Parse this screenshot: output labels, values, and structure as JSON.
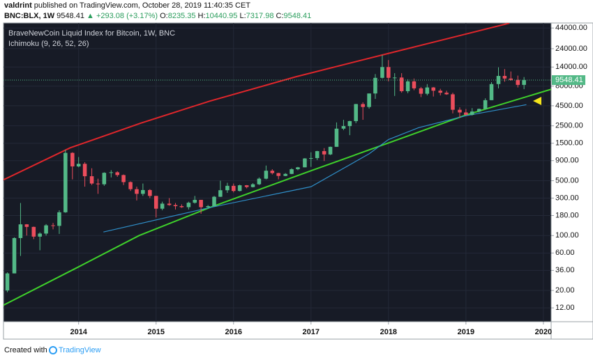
{
  "header": {
    "author": "valdrint",
    "published": "published on TradingView.com, October 28, 2019 11:40:35 CET",
    "symbol": "BNC:BLX, 1W",
    "price": "9548.41",
    "change": "▲ +293.08 (+3.17%)",
    "o_label": "O:",
    "o": "8235.35",
    "h_label": "H:",
    "h": "10440.95",
    "l_label": "L:",
    "l": "7317.98",
    "c_label": "C:",
    "c": "9548.41"
  },
  "footer": {
    "created": "Created with",
    "brand": "TradingView"
  },
  "chart_data": {
    "type": "candlestick",
    "title": "BraveNewCoin Liquid Index for Bitcoin, 1W, BNC",
    "indicator": "Ichimoku (9, 26, 52, 26)",
    "up_color": "#53b987",
    "down_color": "#eb4d5c",
    "log_scale": true,
    "grid": true,
    "xlim": [
      2013.03,
      2020.1
    ],
    "xticks": [
      2014,
      2015,
      2016,
      2017,
      2018,
      2019,
      2020
    ],
    "ylim": [
      8,
      51000
    ],
    "yticks": [
      {
        "value": 12,
        "label": "12.00"
      },
      {
        "value": 20,
        "label": "20.00"
      },
      {
        "value": 36,
        "label": "36.00"
      },
      {
        "value": 60,
        "label": "60.00"
      },
      {
        "value": 100,
        "label": "100.00"
      },
      {
        "value": 180,
        "label": "180.00"
      },
      {
        "value": 300,
        "label": "300.00"
      },
      {
        "value": 500,
        "label": "500.00"
      },
      {
        "value": 900,
        "label": "900.00"
      },
      {
        "value": 1500,
        "label": "1500.00"
      },
      {
        "value": 2500,
        "label": "2500.00"
      },
      {
        "value": 4500,
        "label": "4500.00"
      },
      {
        "value": 8000,
        "label": "8000.00"
      },
      {
        "value": 14000,
        "label": "14000.00"
      },
      {
        "value": 24000,
        "label": "24000.00"
      },
      {
        "value": 44000,
        "label": "44000.00"
      }
    ],
    "last_price": 9548.41,
    "last_color": "#53b987",
    "x": [
      2013.08,
      2013.17,
      2013.25,
      2013.33,
      2013.42,
      2013.5,
      2013.58,
      2013.67,
      2013.75,
      2013.83,
      2013.92,
      2014.0,
      2014.08,
      2014.17,
      2014.25,
      2014.33,
      2014.42,
      2014.5,
      2014.58,
      2014.67,
      2014.75,
      2014.83,
      2014.92,
      2015.0,
      2015.08,
      2015.17,
      2015.25,
      2015.33,
      2015.42,
      2015.5,
      2015.58,
      2015.67,
      2015.75,
      2015.83,
      2015.92,
      2016.0,
      2016.08,
      2016.17,
      2016.25,
      2016.33,
      2016.42,
      2016.5,
      2016.58,
      2016.67,
      2016.75,
      2016.83,
      2016.92,
      2017.0,
      2017.08,
      2017.17,
      2017.25,
      2017.33,
      2017.42,
      2017.5,
      2017.58,
      2017.67,
      2017.75,
      2017.83,
      2017.92,
      2018.0,
      2018.08,
      2018.17,
      2018.25,
      2018.33,
      2018.42,
      2018.5,
      2018.58,
      2018.67,
      2018.75,
      2018.83,
      2018.92,
      2019.0,
      2019.08,
      2019.17,
      2019.25,
      2019.33,
      2019.42,
      2019.5,
      2019.58,
      2019.67,
      2019.75
    ],
    "open": [
      20,
      33,
      93,
      139,
      129,
      97,
      106,
      135,
      133,
      198,
      1130,
      760,
      820,
      570,
      460,
      450,
      630,
      640,
      590,
      480,
      390,
      340,
      380,
      320,
      220,
      255,
      245,
      237,
      230,
      262,
      285,
      230,
      237,
      312,
      378,
      430,
      370,
      437,
      415,
      450,
      530,
      670,
      625,
      575,
      610,
      700,
      740,
      960,
      970,
      1190,
      1080,
      1350,
      2300,
      2480,
      2870,
      4730,
      4340,
      6450,
      10200,
      14000,
      10200,
      10300,
      6900,
      9200,
      7500,
      6400,
      7700,
      7000,
      6600,
      6300,
      4000,
      3700,
      3450,
      3800,
      4100,
      5300,
      8500,
      10800,
      10000,
      9600,
      8300
    ],
    "high": [
      34,
      95,
      260,
      140,
      130,
      110,
      140,
      145,
      210,
      1240,
      1150,
      1000,
      860,
      720,
      530,
      640,
      680,
      660,
      600,
      490,
      420,
      460,
      390,
      320,
      270,
      300,
      260,
      250,
      270,
      320,
      285,
      245,
      320,
      500,
      470,
      460,
      445,
      440,
      465,
      550,
      780,
      700,
      630,
      625,
      720,
      750,
      970,
      1150,
      1200,
      1300,
      1360,
      2760,
      2980,
      2900,
      4750,
      4980,
      6450,
      11400,
      20000,
      17200,
      11700,
      11700,
      9800,
      10000,
      7800,
      8500,
      7800,
      7400,
      7000,
      6600,
      4300,
      4100,
      4200,
      4150,
      5600,
      9000,
      13900,
      13200,
      12300,
      10900,
      10440.95
    ],
    "low": [
      19,
      33,
      55,
      100,
      90,
      65,
      100,
      120,
      105,
      195,
      520,
      740,
      420,
      440,
      340,
      430,
      550,
      560,
      440,
      370,
      280,
      320,
      300,
      170,
      210,
      240,
      215,
      225,
      215,
      255,
      190,
      225,
      235,
      310,
      350,
      355,
      365,
      400,
      410,
      440,
      520,
      600,
      520,
      570,
      605,
      680,
      740,
      750,
      915,
      890,
      1060,
      1350,
      2200,
      1900,
      2700,
      2980,
      4140,
      5500,
      10000,
      9200,
      6000,
      6600,
      6500,
      7100,
      5800,
      6100,
      5900,
      6100,
      6200,
      3600,
      3150,
      3400,
      3380,
      3700,
      4050,
      5300,
      7500,
      9100,
      9400,
      7700,
      7317.98
    ],
    "close": [
      33,
      93,
      139,
      129,
      97,
      106,
      135,
      133,
      198,
      1130,
      760,
      820,
      570,
      460,
      450,
      630,
      640,
      590,
      480,
      390,
      340,
      380,
      320,
      220,
      255,
      245,
      237,
      230,
      262,
      285,
      230,
      237,
      312,
      378,
      430,
      370,
      437,
      415,
      450,
      530,
      670,
      625,
      575,
      610,
      700,
      740,
      960,
      970,
      1190,
      1080,
      1350,
      2300,
      2480,
      2870,
      4730,
      4340,
      6450,
      10200,
      14000,
      10200,
      10300,
      6900,
      9200,
      7500,
      6400,
      7700,
      7000,
      6600,
      6300,
      4000,
      3700,
      3450,
      3800,
      4100,
      5300,
      8500,
      10800,
      10000,
      9600,
      8300,
      9548.41
    ],
    "lines": [
      {
        "color": "#e0262b",
        "x": [
          2013.03,
          2013.89,
          2014.8,
          2015.69,
          2016.8,
          2017.94,
          2019.56
        ],
        "values": [
          513,
          1310,
          2700,
          5150,
          10500,
          20200,
          50700
        ]
      },
      {
        "color": "#3fd12b",
        "x": [
          2013.03,
          2014,
          2014.78,
          2015.69,
          2017,
          2018,
          2019,
          2020.1
        ],
        "values": [
          13,
          40,
          100,
          227,
          670,
          1510,
          3430,
          7300
        ]
      },
      {
        "color": "#2f8fc9",
        "x": [
          2014.32,
          2015.69,
          2017,
          2017.75,
          2018,
          2018.39,
          2019,
          2019.78
        ],
        "values": [
          111,
          227,
          419,
          1100,
          1670,
          2370,
          3360,
          4650
        ]
      }
    ]
  }
}
